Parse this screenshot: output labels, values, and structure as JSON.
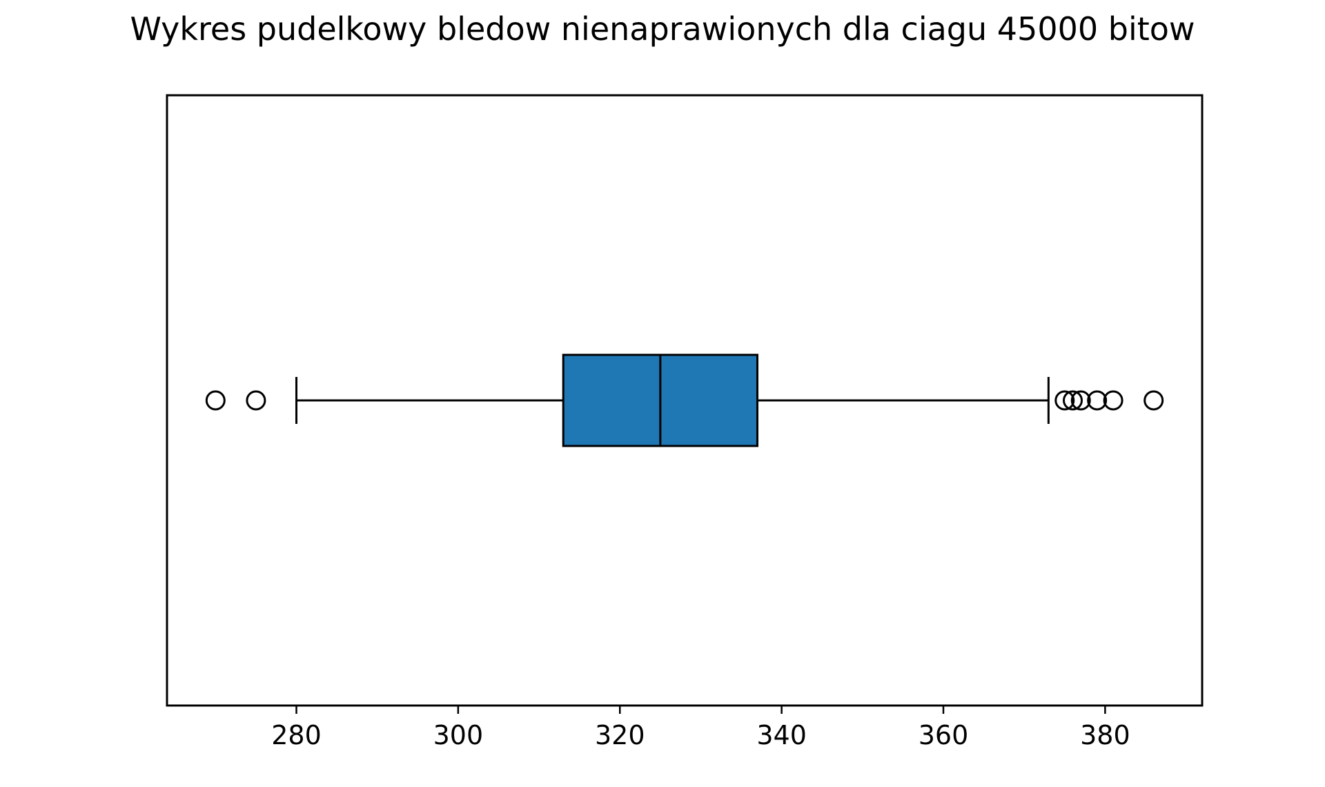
{
  "chart_data": {
    "type": "box",
    "orientation": "horizontal",
    "title": "Wykres pudelkowy bledow nienaprawionych dla ciagu 45000 bitow",
    "xlabel": "",
    "ylabel": "",
    "xlim": [
      264,
      392
    ],
    "x_ticks": [
      280,
      300,
      320,
      340,
      360,
      380
    ],
    "x_tick_labels": [
      "280",
      "300",
      "320",
      "340",
      "360",
      "380"
    ],
    "grid": false,
    "legend": false,
    "box": {
      "whisker_low": 280,
      "q1": 313,
      "median": 325,
      "q3": 337,
      "whisker_high": 373,
      "outliers": [
        270,
        275,
        375,
        376,
        377,
        379,
        381,
        386
      ]
    },
    "colors": {
      "box_fill": "#1f77b4",
      "line": "#000000",
      "background": "#ffffff"
    }
  }
}
